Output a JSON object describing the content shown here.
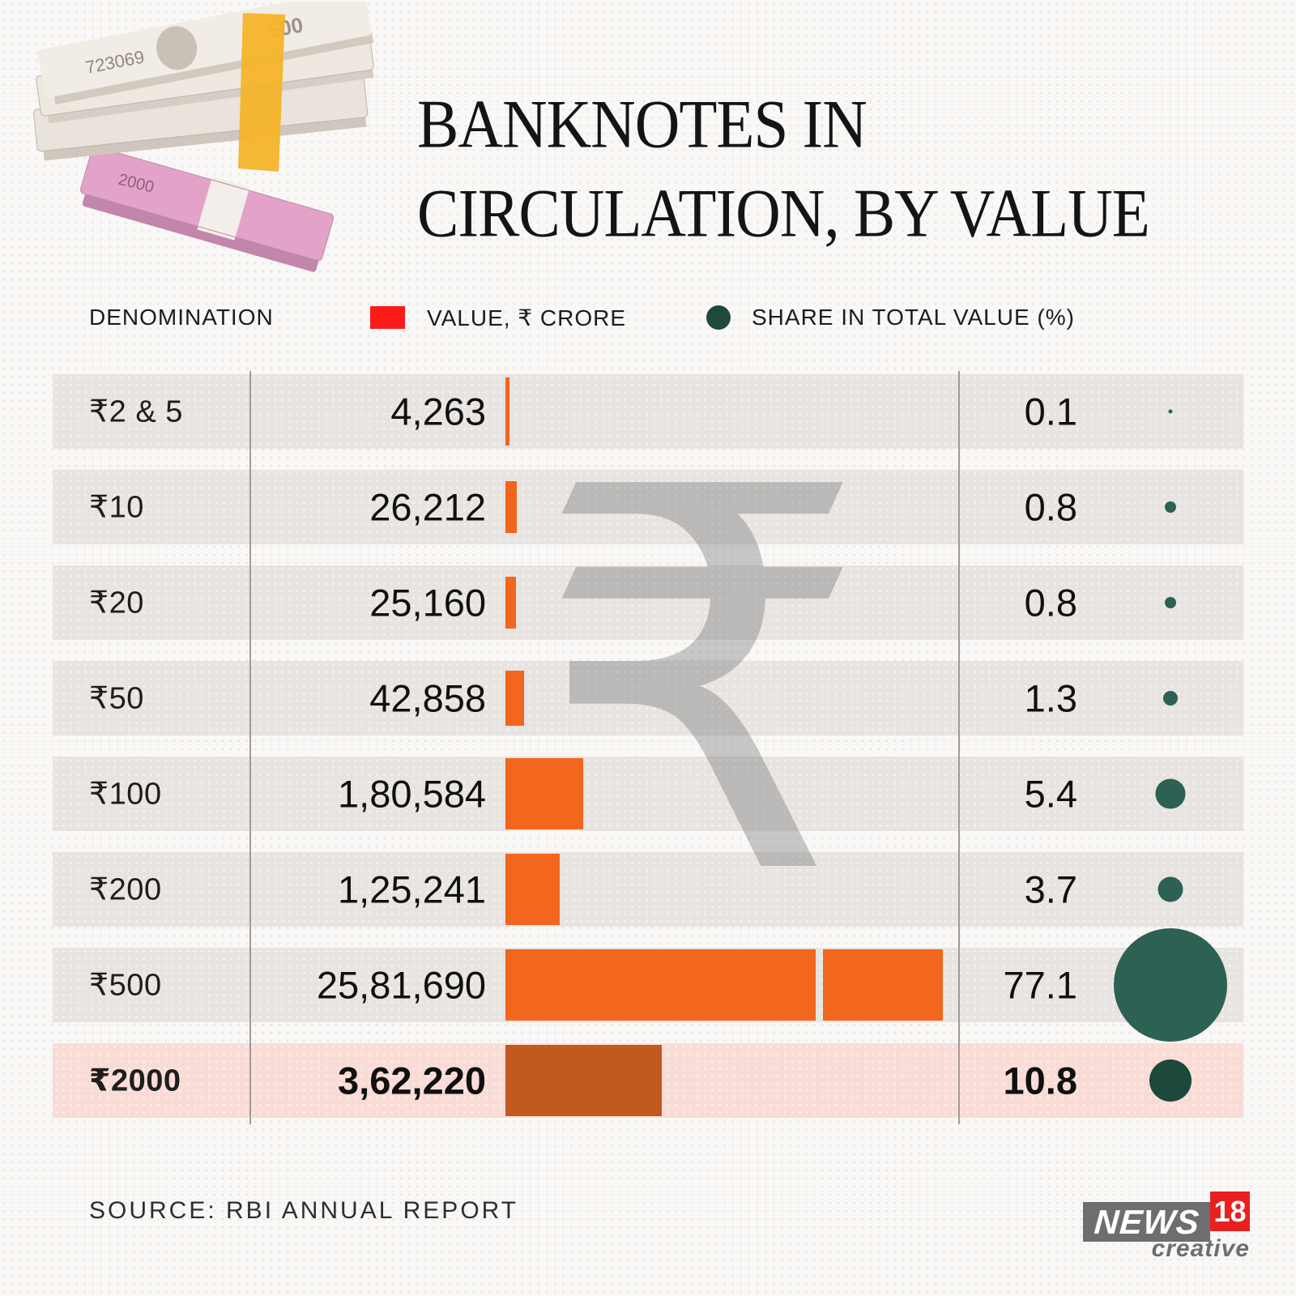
{
  "title": {
    "line1": "BANKNOTES IN",
    "line2": "CIRCULATION, BY VALUE"
  },
  "legend": {
    "denomination_label": "DENOMINATION",
    "value_label": "VALUE, ₹ CRORE",
    "share_label": "SHARE IN TOTAL VALUE (%)",
    "value_swatch_color": "#fb1b1b",
    "share_swatch_color": "#1d4a3d"
  },
  "watermark_glyph": "₹",
  "chart_data": {
    "type": "bar",
    "title": "Banknotes in circulation, by value",
    "categories": [
      "₹2 & 5",
      "₹10",
      "₹20",
      "₹50",
      "₹100",
      "₹200",
      "₹500",
      "₹2000"
    ],
    "series": [
      {
        "name": "Value, ₹ crore",
        "values": [
          4263,
          26212,
          25160,
          42858,
          180584,
          125241,
          2581690,
          362220
        ],
        "display": [
          "4,263",
          "26,212",
          "25,160",
          "42,858",
          "1,80,584",
          "1,25,241",
          "25,81,690",
          "3,62,220"
        ]
      },
      {
        "name": "Share in total value (%)",
        "values": [
          0.1,
          0.8,
          0.8,
          1.3,
          5.4,
          3.7,
          77.1,
          10.8
        ],
        "display": [
          "0.1",
          "0.8",
          "0.8",
          "1.3",
          "5.4",
          "3.7",
          "77.1",
          "10.8"
        ]
      }
    ],
    "highlighted_category": "₹2000",
    "bar_axis_break_category": "₹500",
    "bar_color": "#f2661d",
    "bar_color_highlight": "#c2591e",
    "dot_color": "#2c6153",
    "dot_color_highlight": "#1c493c",
    "row_color": "#e7e4e1",
    "row_color_highlight": "#f9dcd6",
    "legend_position": "top",
    "grid": false
  },
  "footer": {
    "source": "SOURCE: RBI ANNUAL REPORT",
    "logo": {
      "news": "NEWS",
      "number": "18",
      "sub": "creative"
    }
  }
}
